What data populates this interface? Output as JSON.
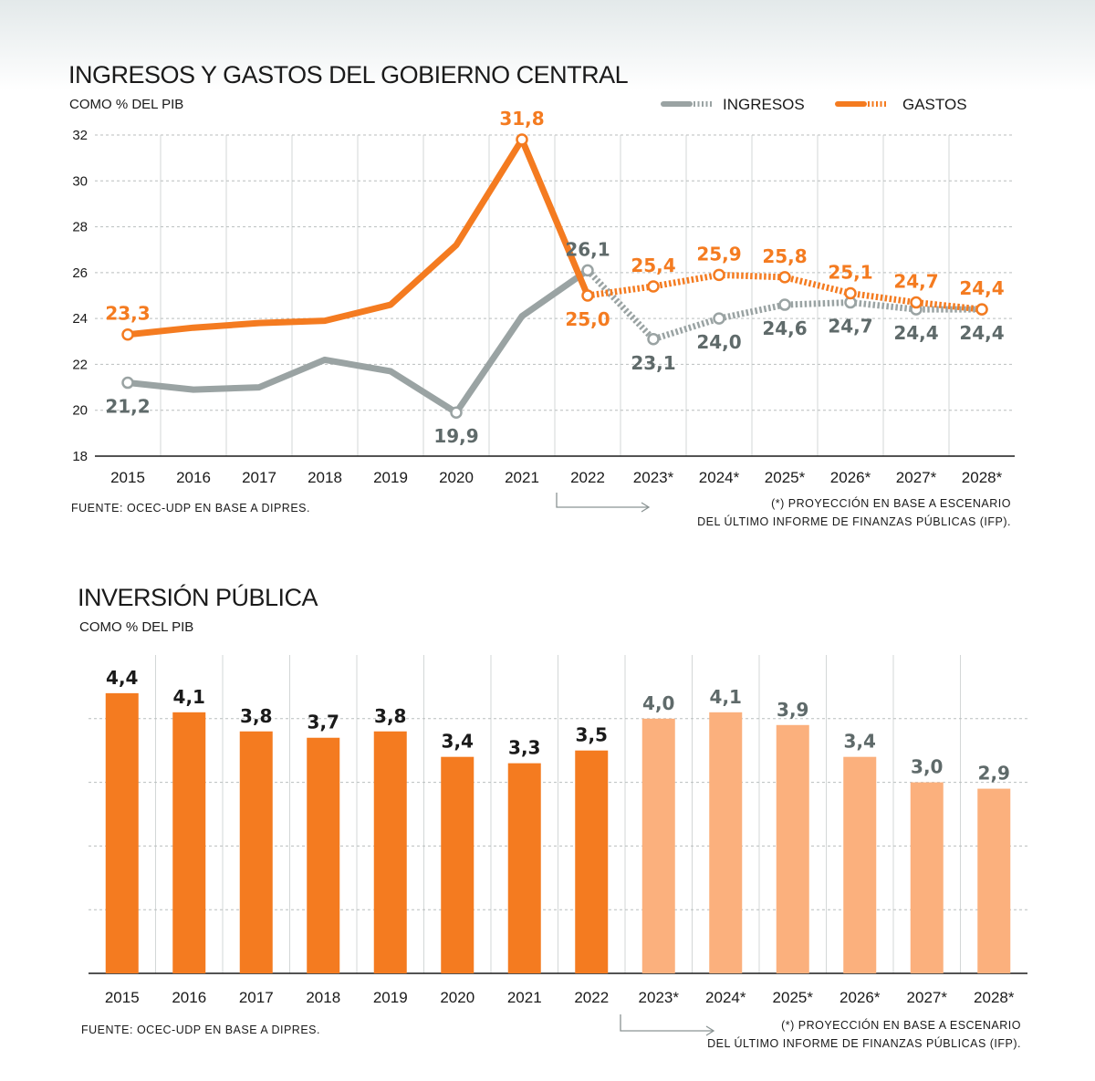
{
  "chart_data": [
    {
      "type": "line",
      "title": "INGRESOS Y GASTOS DEL GOBIERNO CENTRAL",
      "subtitle": "COMO % DEL PIB",
      "categories": [
        "2015",
        "2016",
        "2017",
        "2018",
        "2019",
        "2020",
        "2021",
        "2022",
        "2023*",
        "2024*",
        "2025*",
        "2026*",
        "2027*",
        "2028*"
      ],
      "ylim": [
        18,
        32
      ],
      "yticks": [
        "18",
        "20",
        "22",
        "24",
        "26",
        "28",
        "30",
        "32"
      ],
      "grid": true,
      "legend_position": "top-right",
      "series": [
        {
          "name": "INGRESOS",
          "color": "#9aa3a3",
          "label_color": "#5f6a6a",
          "values": [
            21.2,
            20.9,
            21.0,
            22.2,
            21.7,
            19.9,
            24.1,
            26.1,
            23.1,
            24.0,
            24.6,
            24.7,
            24.4,
            24.4
          ],
          "labels": [
            "21,2",
            "",
            "",
            "",
            "",
            "19,9",
            "",
            "26,1",
            "23,1",
            "24,0",
            "24,6",
            "24,7",
            "24,4",
            "24,4"
          ]
        },
        {
          "name": "GASTOS",
          "color": "#f47b20",
          "label_color": "#f47b20",
          "values": [
            23.3,
            23.6,
            23.8,
            23.9,
            24.6,
            27.2,
            31.8,
            25.0,
            25.4,
            25.9,
            25.8,
            25.1,
            24.7,
            24.4
          ],
          "labels": [
            "23,3",
            "",
            "",
            "",
            "",
            "",
            "31,8",
            "25,0",
            "25,4",
            "25,9",
            "25,8",
            "25,1",
            "24,7",
            "24,4"
          ]
        }
      ],
      "projection_start_index": 7,
      "source": "FUENTE: OCEC-UDP EN BASE A DIPRES.",
      "footnote_line1": "(*) PROYECCIÓN EN BASE A ESCENARIO",
      "footnote_line2": "DEL ÚLTIMO INFORME DE FINANZAS PÚBLICAS (IFP)."
    },
    {
      "type": "bar",
      "title": "INVERSIÓN PÚBLICA",
      "subtitle": "COMO % DEL PIB",
      "categories": [
        "2015",
        "2016",
        "2017",
        "2018",
        "2019",
        "2020",
        "2021",
        "2022",
        "2023*",
        "2024*",
        "2025*",
        "2026*",
        "2027*",
        "2028*"
      ],
      "values": [
        4.4,
        4.1,
        3.8,
        3.7,
        3.8,
        3.4,
        3.3,
        3.5,
        4.0,
        4.1,
        3.9,
        3.4,
        3.0,
        2.9
      ],
      "labels": [
        "4,4",
        "4,1",
        "3,8",
        "3,7",
        "3,8",
        "3,4",
        "3,3",
        "3,5",
        "4,0",
        "4,1",
        "3,9",
        "3,4",
        "3,0",
        "2,9"
      ],
      "ylim": [
        0,
        5
      ],
      "grid": true,
      "actual_color": "#f47b20",
      "projection_color": "#fbb07d",
      "actual_label_color": "#1a1a1a",
      "projection_label_color": "#5f6a6a",
      "projection_start_index": 8,
      "source": "FUENTE: OCEC-UDP EN BASE A DIPRES.",
      "footnote_line1": "(*) PROYECCIÓN EN BASE A ESCENARIO",
      "footnote_line2": "DEL ÚLTIMO INFORME DE FINANZAS PÚBLICAS (IFP)."
    }
  ]
}
